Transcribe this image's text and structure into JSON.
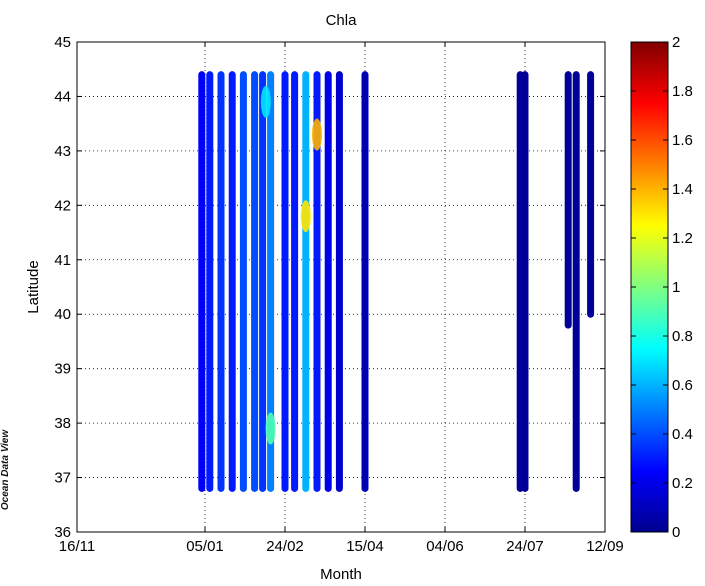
{
  "watermark": "Ocean Data View",
  "chart_data": {
    "type": "scatter",
    "title": "Chla",
    "xlabel": "Month",
    "ylabel": "Latitude",
    "x_ticks": [
      "16/11",
      "05/01",
      "24/02",
      "15/04",
      "04/06",
      "24/07",
      "12/09"
    ],
    "xlim": [
      "16/11",
      "12/09"
    ],
    "ylim": [
      36,
      45
    ],
    "y_ticks": [
      "36",
      "37",
      "38",
      "39",
      "40",
      "41",
      "42",
      "43",
      "44",
      "45"
    ],
    "grid": true,
    "colorbar": {
      "label": "",
      "range": [
        0,
        2
      ],
      "ticks": [
        "0",
        "0.2",
        "0.4",
        "0.6",
        "0.8",
        "1",
        "1.2",
        "1.4",
        "1.6",
        "1.8",
        "2"
      ],
      "colormap": "jet"
    },
    "transects": [
      {
        "date": "03/01",
        "lat_min": 36.8,
        "lat_max": 44.4,
        "chla": 0.25
      },
      {
        "date": "08/01",
        "lat_min": 36.8,
        "lat_max": 44.4,
        "chla": 0.3
      },
      {
        "date": "15/01",
        "lat_min": 36.8,
        "lat_max": 44.4,
        "chla": 0.35
      },
      {
        "date": "22/01",
        "lat_min": 36.8,
        "lat_max": 44.4,
        "chla": 0.3
      },
      {
        "date": "29/01",
        "lat_min": 36.8,
        "lat_max": 44.4,
        "chla": 0.4
      },
      {
        "date": "05/02",
        "lat_min": 36.8,
        "lat_max": 44.4,
        "chla": 0.4
      },
      {
        "date": "10/02",
        "lat_min": 36.8,
        "lat_max": 44.4,
        "chla": 0.35
      },
      {
        "date": "15/02",
        "lat_min": 36.8,
        "lat_max": 44.4,
        "chla": 0.5
      },
      {
        "date": "24/02",
        "lat_min": 36.8,
        "lat_max": 44.4,
        "chla": 0.3
      },
      {
        "date": "02/03",
        "lat_min": 36.8,
        "lat_max": 44.4,
        "chla": 0.3
      },
      {
        "date": "09/03",
        "lat_min": 36.8,
        "lat_max": 44.4,
        "chla": 0.6
      },
      {
        "date": "16/03",
        "lat_min": 36.8,
        "lat_max": 44.4,
        "chla": 0.3
      },
      {
        "date": "23/03",
        "lat_min": 36.8,
        "lat_max": 44.4,
        "chla": 0.2
      },
      {
        "date": "30/03",
        "lat_min": 36.8,
        "lat_max": 44.4,
        "chla": 0.15
      },
      {
        "date": "15/04",
        "lat_min": 36.8,
        "lat_max": 44.4,
        "chla": 0.1
      },
      {
        "date": "21/07",
        "lat_min": 36.8,
        "lat_max": 44.4,
        "chla": 0.05
      },
      {
        "date": "24/07",
        "lat_min": 36.8,
        "lat_max": 44.4,
        "chla": 0.05
      },
      {
        "date": "20/08",
        "lat_min": 39.8,
        "lat_max": 44.4,
        "chla": 0.05
      },
      {
        "date": "25/08",
        "lat_min": 36.8,
        "lat_max": 44.4,
        "chla": 0.05
      },
      {
        "date": "03/09",
        "lat_min": 40.0,
        "lat_max": 44.4,
        "chla": 0.05
      }
    ],
    "hotspots": [
      {
        "date": "09/03",
        "lat": 41.8,
        "chla": 1.3
      },
      {
        "date": "16/03",
        "lat": 43.3,
        "chla": 1.4
      },
      {
        "date": "15/02",
        "lat": 37.9,
        "chla": 0.9
      },
      {
        "date": "12/02",
        "lat": 43.9,
        "chla": 0.7
      }
    ]
  }
}
